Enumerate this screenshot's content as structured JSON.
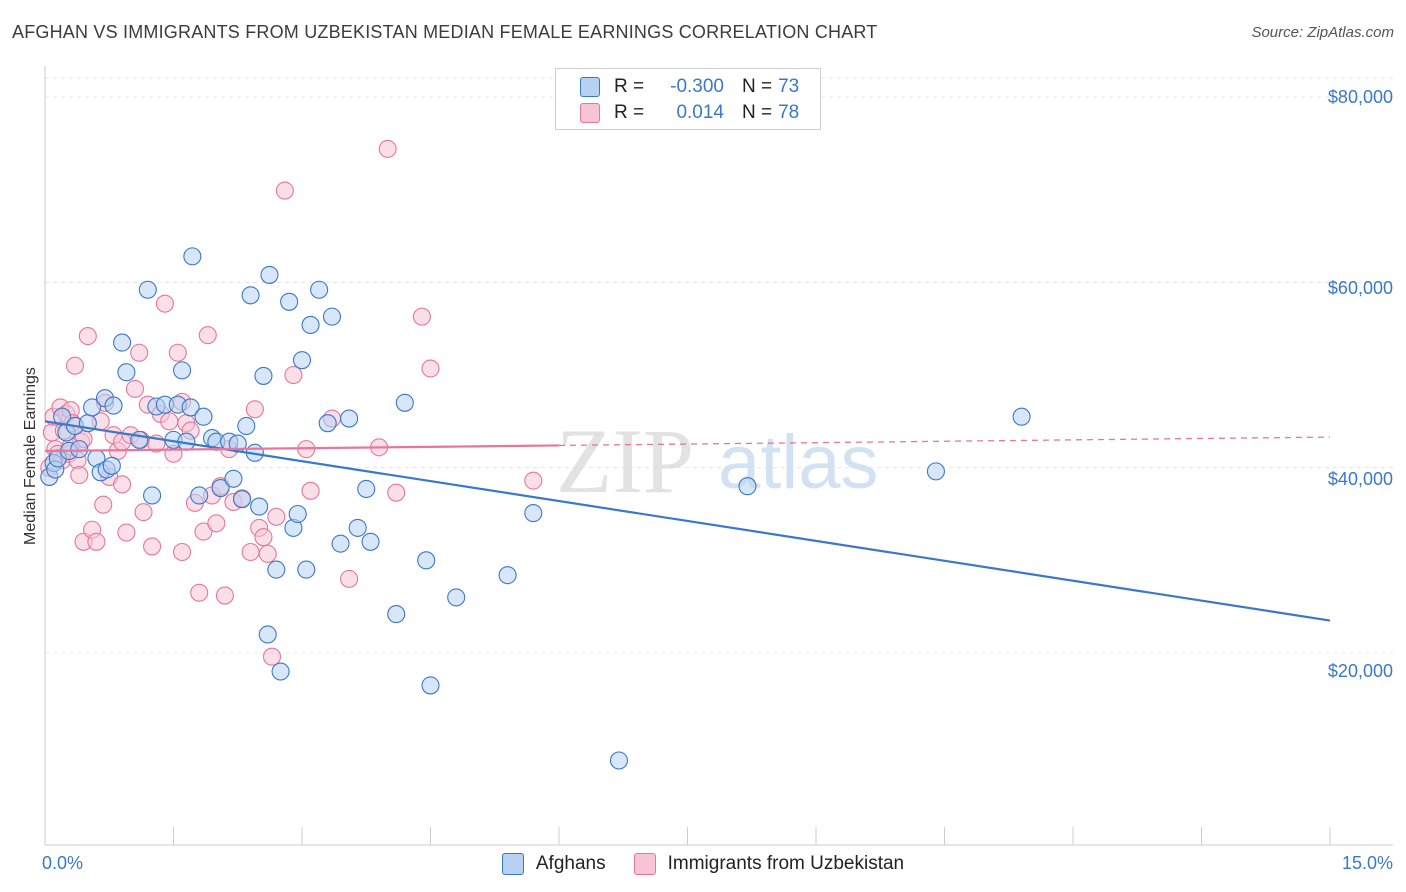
{
  "title": "AFGHAN VS IMMIGRANTS FROM UZBEKISTAN MEDIAN FEMALE EARNINGS CORRELATION CHART",
  "source": "Source: ZipAtlas.com",
  "colors": {
    "blue": "#3a78c9",
    "blue_fill": "#b6d1f2",
    "pink": "#e8759b",
    "pink_fill": "#f6c4d6",
    "grid": "#e4e4e4"
  },
  "legend_top": {
    "rows": [
      {
        "label": "R =",
        "r": "-0.300",
        "n_label": "N =",
        "n": "73"
      },
      {
        "label": "R =",
        "r": "0.014",
        "n_label": "N =",
        "n": "78"
      }
    ]
  },
  "legend_bottom": {
    "series1": "Afghans",
    "series2": "Immigrants from Uzbekistan"
  },
  "chart_data": {
    "type": "scatter",
    "title": "AFGHAN VS IMMIGRANTS FROM UZBEKISTAN MEDIAN FEMALE EARNINGS CORRELATION CHART",
    "xlabel": "",
    "ylabel": "Median Female Earnings",
    "xlim": [
      0,
      15
    ],
    "ylim": [
      0,
      82000
    ],
    "x_tick_labels": [
      "0.0%",
      "15.0%"
    ],
    "y_ticks": [
      20000,
      40000,
      60000,
      80000
    ],
    "y_tick_labels": [
      "$20,000",
      "$40,000",
      "$60,000",
      "$80,000"
    ],
    "watermark": {
      "zip": "ZIP",
      "atlas": "atlas"
    },
    "series": [
      {
        "name": "Afghans",
        "r": -0.3,
        "n": 73,
        "trend": {
          "x0": 0.0,
          "y0": 45000,
          "x1": 15.0,
          "y1": 23500
        },
        "points": [
          [
            0.05,
            39000
          ],
          [
            0.1,
            40500
          ],
          [
            0.12,
            39800
          ],
          [
            0.15,
            41000
          ],
          [
            0.2,
            45500
          ],
          [
            0.25,
            43800
          ],
          [
            0.28,
            41800
          ],
          [
            0.35,
            44500
          ],
          [
            0.4,
            42000
          ],
          [
            0.5,
            44800
          ],
          [
            0.55,
            46500
          ],
          [
            0.6,
            41000
          ],
          [
            0.65,
            39500
          ],
          [
            0.7,
            47500
          ],
          [
            0.72,
            39800
          ],
          [
            0.78,
            40200
          ],
          [
            0.8,
            46700
          ],
          [
            0.9,
            53500
          ],
          [
            0.95,
            50300
          ],
          [
            1.1,
            43000
          ],
          [
            1.2,
            59200
          ],
          [
            1.25,
            37000
          ],
          [
            1.3,
            46600
          ],
          [
            1.4,
            46800
          ],
          [
            1.5,
            43000
          ],
          [
            1.55,
            46800
          ],
          [
            1.6,
            50500
          ],
          [
            1.65,
            42800
          ],
          [
            1.7,
            46500
          ],
          [
            1.72,
            62800
          ],
          [
            1.8,
            37000
          ],
          [
            1.85,
            45500
          ],
          [
            1.95,
            43200
          ],
          [
            2.0,
            42800
          ],
          [
            2.05,
            37800
          ],
          [
            2.15,
            42800
          ],
          [
            2.2,
            38800
          ],
          [
            2.25,
            42600
          ],
          [
            2.3,
            36600
          ],
          [
            2.35,
            44500
          ],
          [
            2.4,
            58600
          ],
          [
            2.45,
            41600
          ],
          [
            2.5,
            35800
          ],
          [
            2.55,
            49900
          ],
          [
            2.6,
            22000
          ],
          [
            2.62,
            60800
          ],
          [
            2.7,
            29000
          ],
          [
            2.75,
            18000
          ],
          [
            2.85,
            57900
          ],
          [
            2.9,
            33500
          ],
          [
            2.95,
            35000
          ],
          [
            3.0,
            51600
          ],
          [
            3.05,
            29000
          ],
          [
            3.1,
            55400
          ],
          [
            3.2,
            59200
          ],
          [
            3.3,
            44800
          ],
          [
            3.35,
            56300
          ],
          [
            3.45,
            31800
          ],
          [
            3.55,
            45300
          ],
          [
            3.65,
            33500
          ],
          [
            3.75,
            37700
          ],
          [
            3.8,
            32000
          ],
          [
            4.1,
            24200
          ],
          [
            4.2,
            47000
          ],
          [
            4.45,
            30000
          ],
          [
            4.5,
            16500
          ],
          [
            4.8,
            26000
          ],
          [
            5.4,
            28400
          ],
          [
            5.7,
            35100
          ],
          [
            6.7,
            8400
          ],
          [
            8.2,
            38000
          ],
          [
            10.4,
            39600
          ],
          [
            11.4,
            45500
          ]
        ]
      },
      {
        "name": "Immigrants from Uzbekistan",
        "r": 0.014,
        "n": 78,
        "trend": {
          "x0": 0.0,
          "y0": 41800,
          "x1": 15.0,
          "y1": 43300,
          "solid_until": 6.0
        },
        "points": [
          [
            0.05,
            40000
          ],
          [
            0.08,
            43800
          ],
          [
            0.1,
            45500
          ],
          [
            0.12,
            42000
          ],
          [
            0.15,
            41500
          ],
          [
            0.18,
            46500
          ],
          [
            0.2,
            40800
          ],
          [
            0.22,
            44000
          ],
          [
            0.25,
            45800
          ],
          [
            0.28,
            41500
          ],
          [
            0.3,
            46200
          ],
          [
            0.32,
            44800
          ],
          [
            0.35,
            51000
          ],
          [
            0.38,
            40800
          ],
          [
            0.4,
            39200
          ],
          [
            0.42,
            42800
          ],
          [
            0.45,
            32000
          ],
          [
            0.5,
            54200
          ],
          [
            0.55,
            33300
          ],
          [
            0.6,
            32000
          ],
          [
            0.65,
            45000
          ],
          [
            0.68,
            36000
          ],
          [
            0.7,
            47000
          ],
          [
            0.75,
            39000
          ],
          [
            0.8,
            43500
          ],
          [
            0.85,
            41800
          ],
          [
            0.9,
            42800
          ],
          [
            0.95,
            33000
          ],
          [
            1.0,
            43500
          ],
          [
            1.05,
            48500
          ],
          [
            1.1,
            52400
          ],
          [
            1.12,
            43000
          ],
          [
            1.15,
            35200
          ],
          [
            1.2,
            46800
          ],
          [
            1.25,
            31500
          ],
          [
            1.3,
            42600
          ],
          [
            1.35,
            45800
          ],
          [
            1.4,
            57700
          ],
          [
            1.45,
            45000
          ],
          [
            1.5,
            41500
          ],
          [
            1.55,
            52400
          ],
          [
            1.6,
            30900
          ],
          [
            1.65,
            44800
          ],
          [
            1.7,
            44000
          ],
          [
            1.75,
            36200
          ],
          [
            1.8,
            26500
          ],
          [
            1.85,
            33100
          ],
          [
            1.9,
            54300
          ],
          [
            1.95,
            37000
          ],
          [
            2.0,
            34000
          ],
          [
            2.05,
            38000
          ],
          [
            2.1,
            26200
          ],
          [
            2.15,
            42000
          ],
          [
            2.2,
            36300
          ],
          [
            2.3,
            36700
          ],
          [
            2.4,
            30900
          ],
          [
            2.45,
            46300
          ],
          [
            2.5,
            33500
          ],
          [
            2.55,
            32500
          ],
          [
            2.6,
            30700
          ],
          [
            2.65,
            19600
          ],
          [
            2.7,
            34700
          ],
          [
            2.8,
            69900
          ],
          [
            2.9,
            50000
          ],
          [
            3.05,
            42000
          ],
          [
            3.1,
            37500
          ],
          [
            3.35,
            45300
          ],
          [
            3.55,
            28000
          ],
          [
            3.9,
            42200
          ],
          [
            4.0,
            74400
          ],
          [
            4.1,
            37300
          ],
          [
            4.4,
            56300
          ],
          [
            4.5,
            50700
          ],
          [
            5.7,
            38600
          ],
          [
            0.45,
            43100
          ],
          [
            0.9,
            38200
          ],
          [
            1.6,
            47100
          ],
          [
            0.3,
            42300
          ]
        ]
      }
    ]
  }
}
